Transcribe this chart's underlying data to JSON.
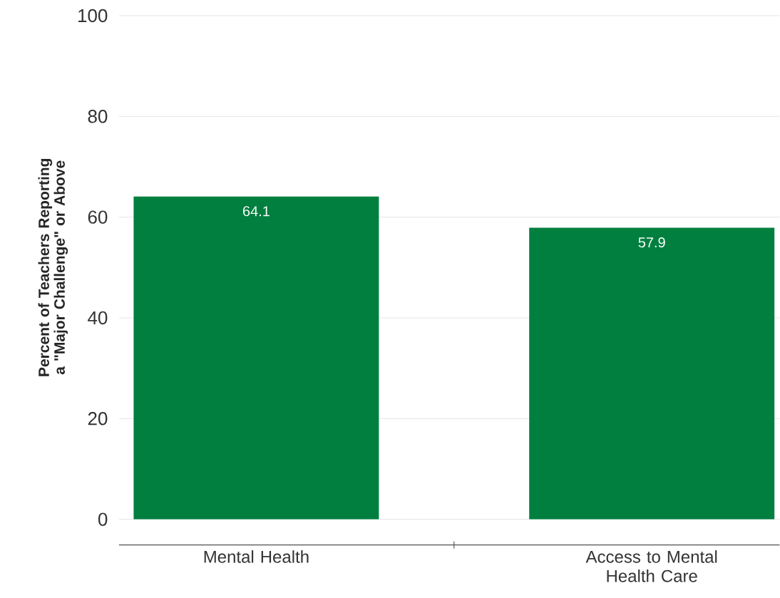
{
  "chart_data": {
    "type": "bar",
    "ylabel": "Percent of Teachers Reporting a \"Major Challenge\" or Above",
    "categories": [
      "Mental Health",
      "Access to Mental Health Care"
    ],
    "values": [
      64.1,
      57.9
    ],
    "color": "#007f3f",
    "value_labels": [
      "64.1",
      "57.9"
    ],
    "ylim": [
      0,
      100
    ],
    "yticks": [
      0,
      20,
      40,
      60,
      80,
      100
    ],
    "grid": "y"
  }
}
